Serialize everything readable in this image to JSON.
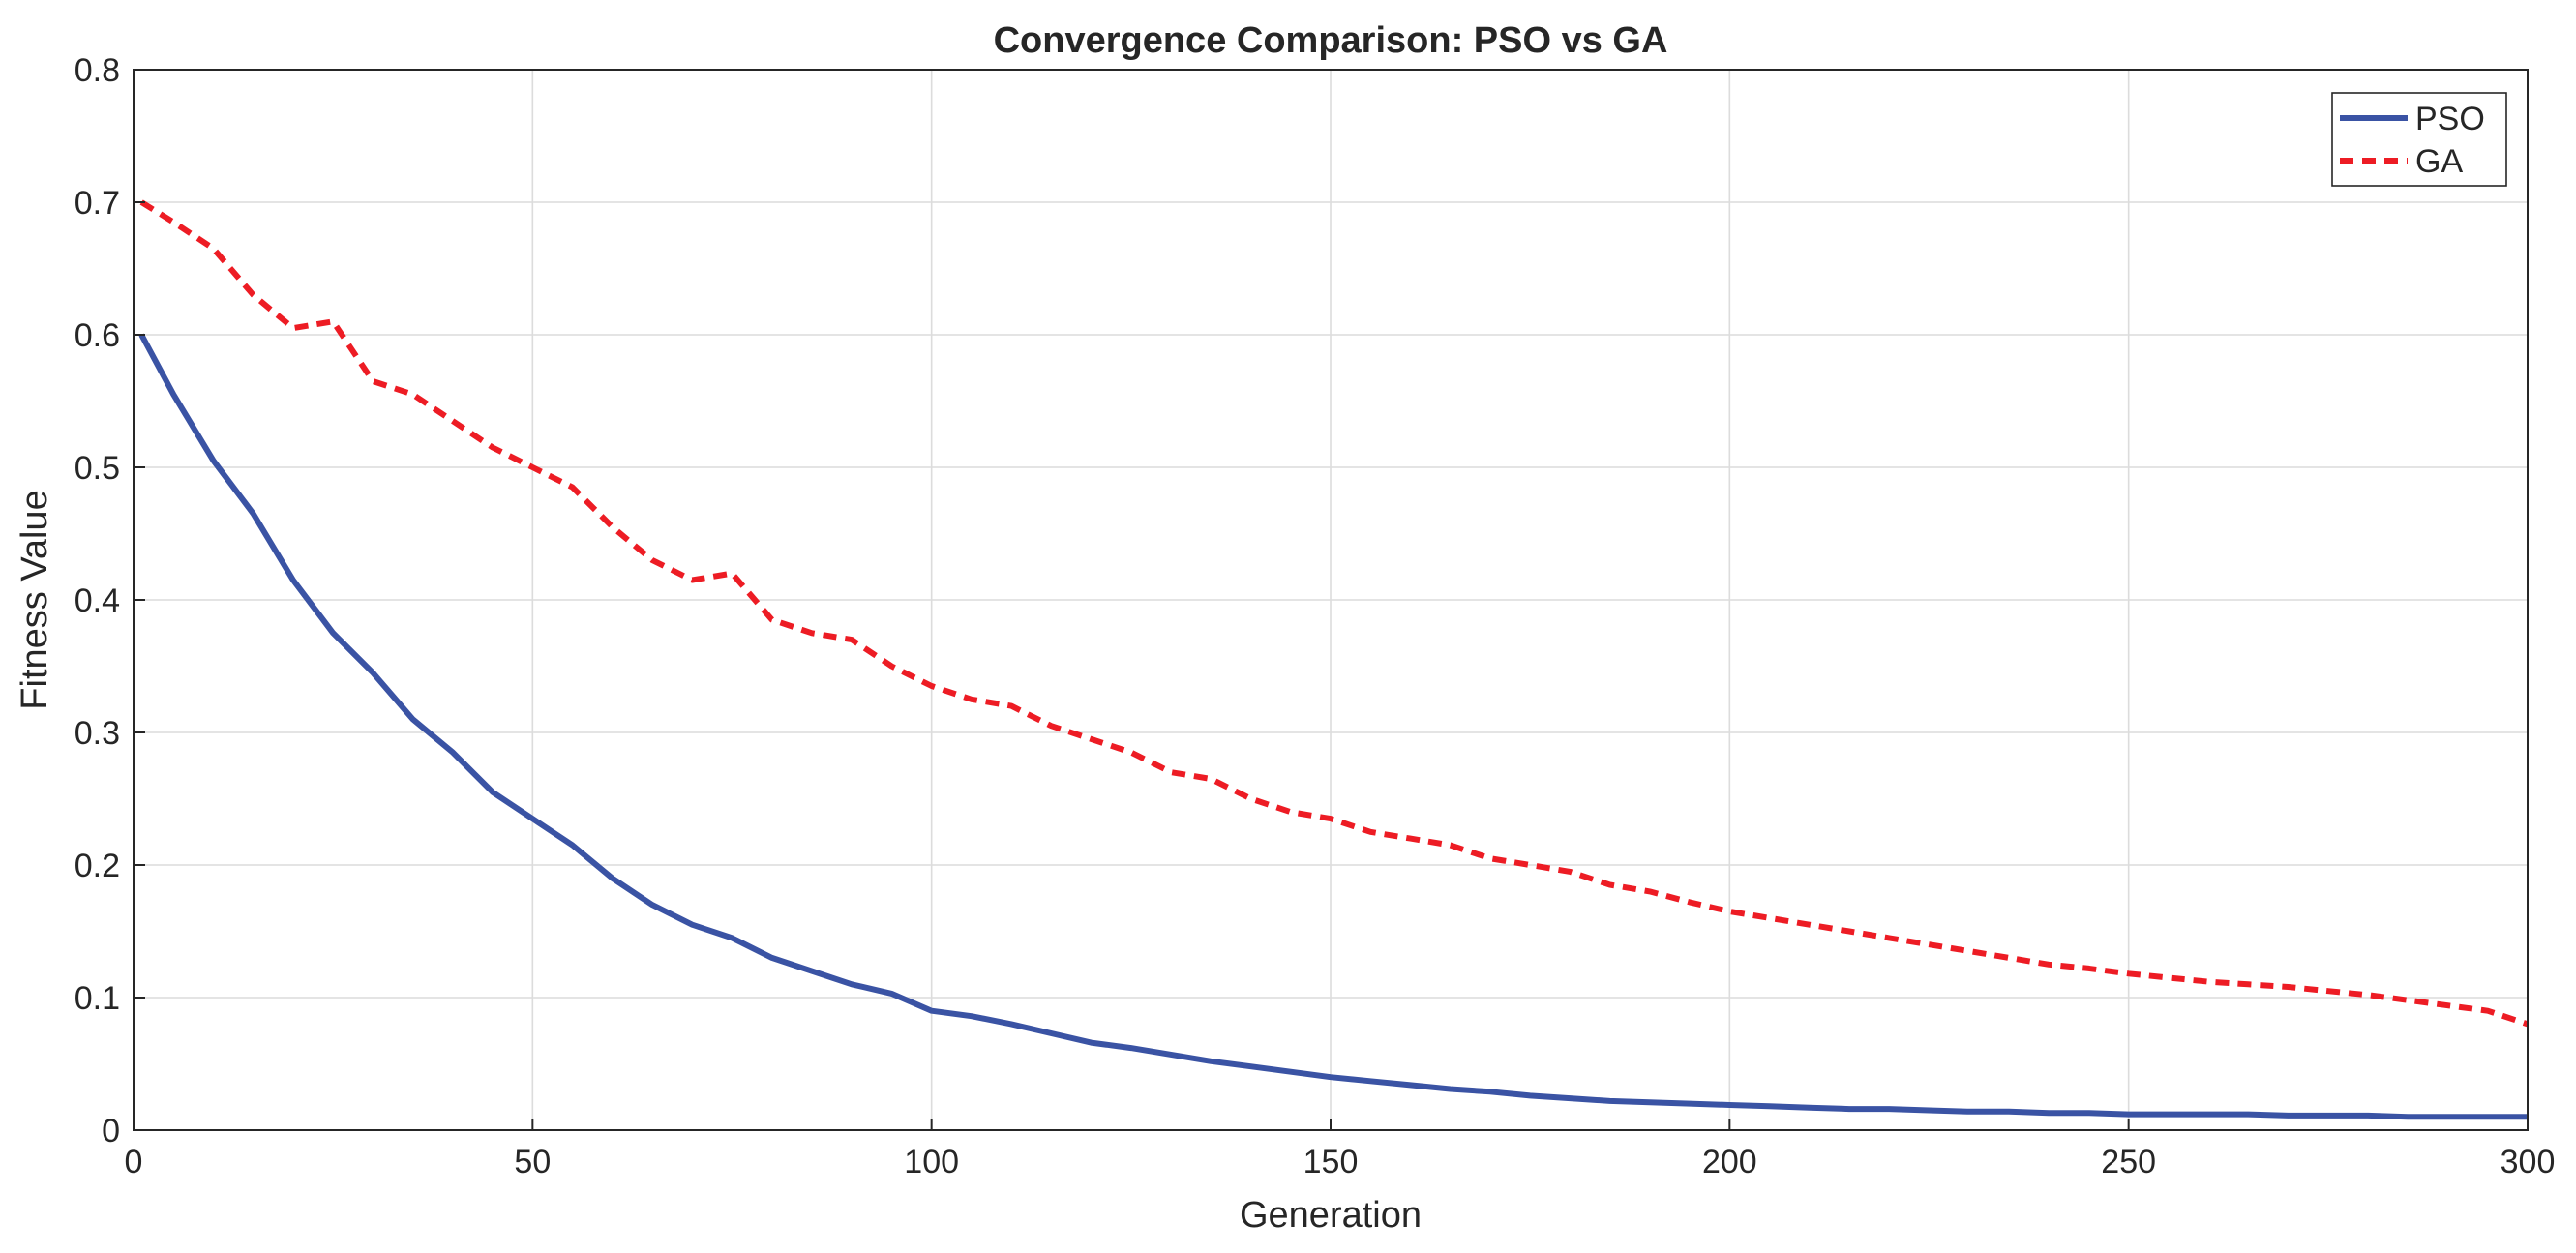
{
  "chart_data": {
    "type": "line",
    "title": "Convergence Comparison: PSO vs GA",
    "xlabel": "Generation",
    "ylabel": "Fitness Value",
    "xlim": [
      0,
      300
    ],
    "ylim": [
      0,
      0.8
    ],
    "grid": true,
    "legend_position": "top-right",
    "x_ticks": [
      "0",
      "50",
      "100",
      "150",
      "200",
      "250",
      "300"
    ],
    "y_ticks": [
      "0",
      "0.1",
      "0.2",
      "0.3",
      "0.4",
      "0.5",
      "0.6",
      "0.7",
      "0.8"
    ],
    "series": [
      {
        "name": "PSO",
        "color": "#3a53a4",
        "style": "solid",
        "x": [
          1,
          5,
          10,
          15,
          20,
          25,
          30,
          35,
          40,
          45,
          50,
          55,
          60,
          65,
          70,
          75,
          80,
          85,
          90,
          95,
          100,
          105,
          110,
          115,
          120,
          125,
          130,
          135,
          140,
          145,
          150,
          155,
          160,
          165,
          170,
          175,
          180,
          185,
          190,
          195,
          200,
          205,
          210,
          215,
          220,
          225,
          230,
          235,
          240,
          245,
          250,
          255,
          260,
          265,
          270,
          275,
          280,
          285,
          290,
          295,
          300
        ],
        "y": [
          0.6,
          0.555,
          0.505,
          0.465,
          0.415,
          0.375,
          0.345,
          0.31,
          0.285,
          0.255,
          0.235,
          0.215,
          0.19,
          0.17,
          0.155,
          0.145,
          0.13,
          0.12,
          0.11,
          0.103,
          0.09,
          0.086,
          0.08,
          0.073,
          0.066,
          0.062,
          0.057,
          0.052,
          0.048,
          0.044,
          0.04,
          0.037,
          0.034,
          0.031,
          0.029,
          0.026,
          0.024,
          0.022,
          0.021,
          0.02,
          0.019,
          0.018,
          0.017,
          0.016,
          0.016,
          0.015,
          0.014,
          0.014,
          0.013,
          0.013,
          0.012,
          0.012,
          0.012,
          0.012,
          0.011,
          0.011,
          0.011,
          0.01,
          0.01,
          0.01,
          0.01
        ]
      },
      {
        "name": "GA",
        "color": "#ed1c24",
        "style": "dashed",
        "x": [
          1,
          5,
          10,
          15,
          20,
          25,
          30,
          35,
          40,
          45,
          50,
          55,
          60,
          65,
          70,
          75,
          80,
          85,
          90,
          95,
          100,
          105,
          110,
          115,
          120,
          125,
          130,
          135,
          140,
          145,
          150,
          155,
          160,
          165,
          170,
          175,
          180,
          185,
          190,
          195,
          200,
          205,
          210,
          215,
          220,
          225,
          230,
          235,
          240,
          245,
          250,
          255,
          260,
          265,
          270,
          275,
          280,
          285,
          290,
          295,
          300
        ],
        "y": [
          0.7,
          0.685,
          0.665,
          0.63,
          0.605,
          0.61,
          0.565,
          0.555,
          0.535,
          0.515,
          0.5,
          0.485,
          0.455,
          0.43,
          0.415,
          0.42,
          0.385,
          0.375,
          0.37,
          0.35,
          0.335,
          0.325,
          0.32,
          0.305,
          0.295,
          0.285,
          0.27,
          0.265,
          0.25,
          0.24,
          0.235,
          0.225,
          0.22,
          0.215,
          0.205,
          0.2,
          0.195,
          0.185,
          0.18,
          0.172,
          0.165,
          0.16,
          0.155,
          0.15,
          0.145,
          0.14,
          0.135,
          0.13,
          0.125,
          0.122,
          0.118,
          0.115,
          0.112,
          0.11,
          0.108,
          0.105,
          0.102,
          0.098,
          0.094,
          0.09,
          0.08
        ]
      }
    ]
  }
}
